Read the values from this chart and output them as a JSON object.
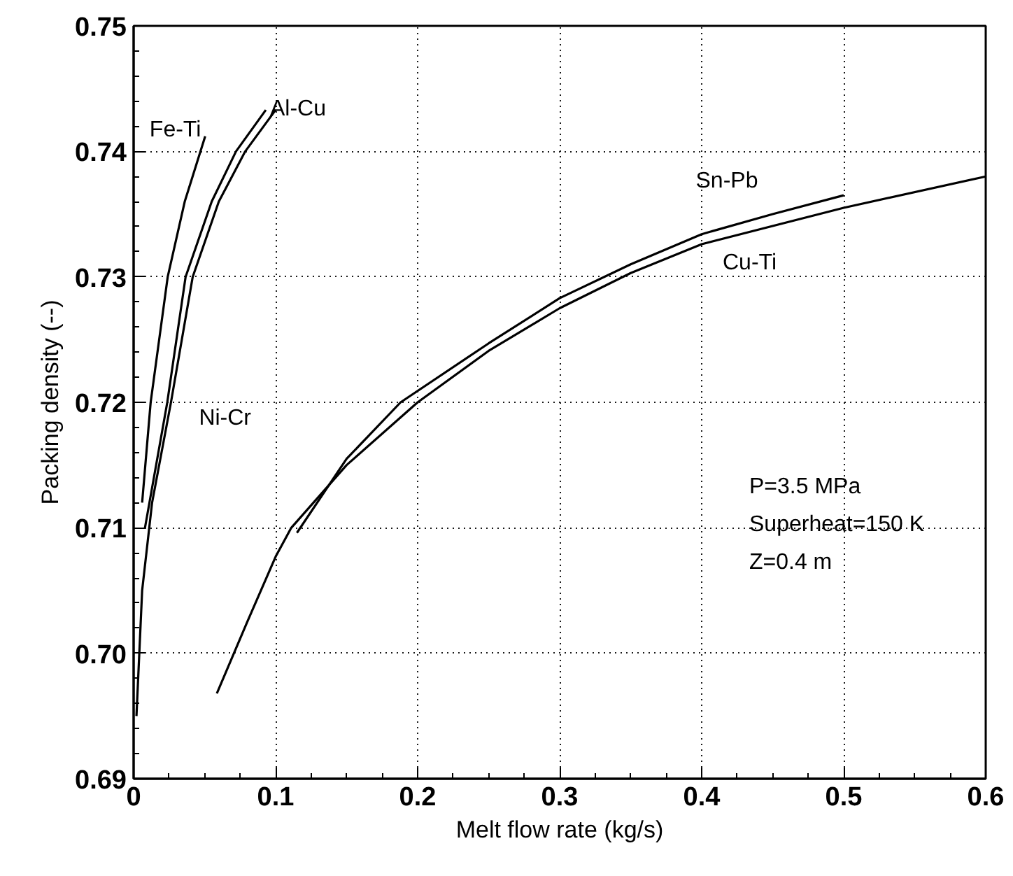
{
  "chart_data": {
    "type": "line",
    "xlabel": "Melt flow rate (kg/s)",
    "ylabel": "Packing density (--)",
    "xlim": [
      0,
      0.6
    ],
    "ylim": [
      0.69,
      0.75
    ],
    "xticks": [
      0,
      0.1,
      0.2,
      0.3,
      0.4,
      0.5,
      0.6
    ],
    "yticks": [
      {
        "value": 0.69,
        "label": "0.69"
      },
      {
        "value": 0.7,
        "label": "0.70"
      },
      {
        "value": 0.71,
        "label": "0.71"
      },
      {
        "value": 0.72,
        "label": "0.72"
      },
      {
        "value": 0.73,
        "label": "0.73"
      },
      {
        "value": 0.74,
        "label": "0.74"
      },
      {
        "value": 0.75,
        "label": "0.75"
      }
    ],
    "grid": true,
    "marker": "none",
    "line_style": "solid",
    "series": [
      {
        "name": "Fe-Ti",
        "color": "#000000",
        "x": [
          0.006,
          0.012,
          0.024,
          0.036,
          0.0504
        ],
        "values": [
          0.712,
          0.72,
          0.73,
          0.736,
          0.7412
        ]
      },
      {
        "name": "Al-Cu",
        "color": "#000000",
        "x": [
          0.008,
          0.0237,
          0.0366,
          0.055,
          0.0721,
          0.0931
        ],
        "values": [
          0.71,
          0.72,
          0.73,
          0.736,
          0.74,
          0.7433
        ]
      },
      {
        "name": "Ni-Cr",
        "color": "#000000",
        "x": [
          0.002,
          0.006,
          0.013,
          0.0263,
          0.0416,
          0.06,
          0.0786,
          0.1
        ],
        "values": [
          0.695,
          0.705,
          0.712,
          0.72,
          0.73,
          0.736,
          0.74,
          0.7433
        ]
      },
      {
        "name": "Sn-Pb",
        "color": "#000000",
        "x": [
          0.115,
          0.15,
          0.188,
          0.25,
          0.3,
          0.35,
          0.4,
          0.45,
          0.5
        ],
        "values": [
          0.7096,
          0.7155,
          0.72,
          0.7247,
          0.7283,
          0.731,
          0.7334,
          0.735,
          0.7365
        ]
      },
      {
        "name": "Cu-Ti",
        "color": "#000000",
        "x": [
          0.0586,
          0.08,
          0.1,
          0.111,
          0.15,
          0.2,
          0.25,
          0.3,
          0.35,
          0.4,
          0.5,
          0.6
        ],
        "values": [
          0.6968,
          0.7025,
          0.7077,
          0.71,
          0.715,
          0.72,
          0.7241,
          0.7275,
          0.7303,
          0.7326,
          0.7355,
          0.738
        ]
      }
    ],
    "annotations": [
      "P=3.5 MPa",
      "Superheat=150 K",
      "Z=0.4 m"
    ]
  }
}
